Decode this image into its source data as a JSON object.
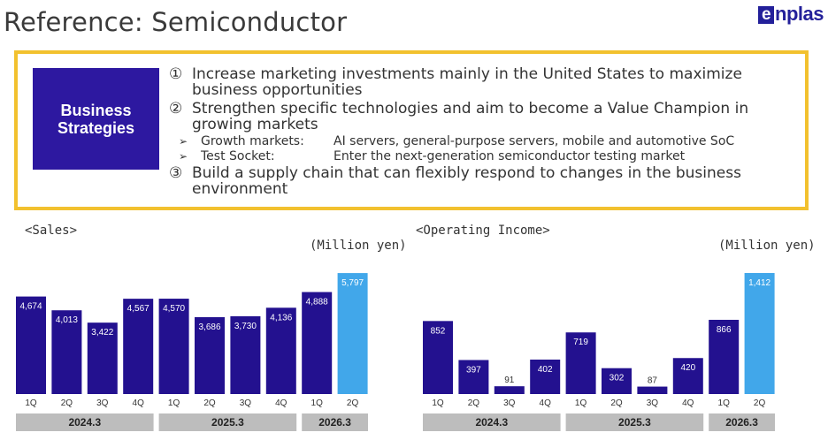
{
  "header": {
    "title": "Reference: Semiconductor",
    "logo_text": "enplas"
  },
  "strategies": {
    "label_line1": "Business",
    "label_line2": "Strategies",
    "item1_num": "①",
    "item1_text": "Increase marketing investments mainly in the United States to maximize business opportunities",
    "item2_num": "②",
    "item2_text": "Strengthen specific technologies and aim to become a Value Champion in growing markets",
    "sub1_term": "Growth markets:",
    "sub1_text": "AI servers, general-purpose servers, mobile and automotive SoC",
    "sub2_term": "Test Socket:",
    "sub2_text": "Enter the next-generation semiconductor testing market",
    "item3_num": "③",
    "item3_text": "Build a supply chain that can flexibly respond to changes in the business environment",
    "accent_color": "#f2c12e",
    "label_color": "#2d18a0"
  },
  "chart_data": [
    {
      "type": "bar",
      "title": "<Sales>",
      "unit": "(Million yen)",
      "categories": [
        "1Q",
        "2Q",
        "3Q",
        "4Q",
        "1Q",
        "2Q",
        "3Q",
        "4Q",
        "1Q",
        "2Q"
      ],
      "values": [
        4674,
        4013,
        3422,
        4567,
        4570,
        3686,
        3730,
        4136,
        4888,
        5797
      ],
      "value_labels": [
        "4,674",
        "4,013",
        "3,422",
        "4,567",
        "4,570",
        "3,686",
        "3,730",
        "4,136",
        "4,888",
        "5,797"
      ],
      "highlight": [
        false,
        false,
        false,
        false,
        false,
        false,
        false,
        false,
        false,
        true
      ],
      "groups": [
        {
          "label": "2024.3",
          "count": 4
        },
        {
          "label": "2025.3",
          "count": 4
        },
        {
          "label": "2026.3",
          "count": 2
        }
      ],
      "ylim": [
        0,
        5800
      ],
      "colors": {
        "actual": "#23118f",
        "latest": "#41a7ea"
      }
    },
    {
      "type": "bar",
      "title": "<Operating Income>",
      "unit": "(Million yen)",
      "categories": [
        "1Q",
        "2Q",
        "3Q",
        "4Q",
        "1Q",
        "2Q",
        "3Q",
        "4Q",
        "1Q",
        "2Q"
      ],
      "values": [
        852,
        397,
        91,
        402,
        719,
        302,
        87,
        420,
        866,
        1412
      ],
      "value_labels": [
        "852",
        "397",
        "91",
        "402",
        "719",
        "302",
        "87",
        "420",
        "866",
        "1,412"
      ],
      "highlight": [
        false,
        false,
        false,
        false,
        false,
        false,
        false,
        false,
        false,
        true
      ],
      "groups": [
        {
          "label": "2024.3",
          "count": 4
        },
        {
          "label": "2025.3",
          "count": 4
        },
        {
          "label": "2026.3",
          "count": 2
        }
      ],
      "ylim": [
        0,
        1412
      ],
      "colors": {
        "actual": "#23118f",
        "latest": "#41a7ea"
      }
    }
  ]
}
